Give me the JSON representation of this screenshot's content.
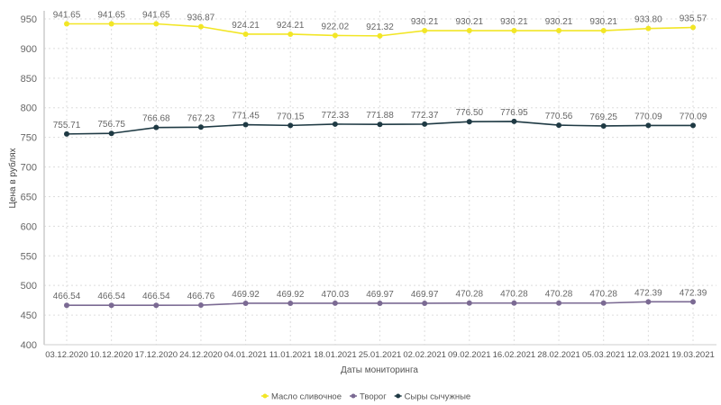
{
  "chart_data": {
    "type": "line",
    "title": "",
    "xlabel": "Даты мониторинга",
    "ylabel": "Цена в рублях",
    "ylim": [
      400,
      950
    ],
    "yticks": [
      400,
      450,
      500,
      550,
      600,
      650,
      700,
      750,
      800,
      850,
      900,
      950
    ],
    "grid": true,
    "legend_position": "bottom-center",
    "categories": [
      "03.12.2020",
      "10.12.2020",
      "17.12.2020",
      "24.12.2020",
      "04.01.2021",
      "11.01.2021",
      "18.01.2021",
      "25.01.2021",
      "02.02.2021",
      "09.02.2021",
      "16.02.2021",
      "28.02.2021",
      "05.03.2021",
      "12.03.2021",
      "19.03.2021"
    ],
    "series": [
      {
        "name": "Масло сливочное",
        "color": "#f2e626",
        "values": [
          941.65,
          941.65,
          941.65,
          936.87,
          924.21,
          924.21,
          922.02,
          921.32,
          930.21,
          930.21,
          930.21,
          930.21,
          930.21,
          933.8,
          935.57
        ]
      },
      {
        "name": "Творог",
        "color": "#7b6a93",
        "values": [
          466.54,
          466.54,
          466.54,
          466.76,
          469.92,
          469.92,
          470.03,
          469.97,
          469.97,
          470.28,
          470.28,
          470.28,
          470.28,
          472.39,
          472.39
        ]
      },
      {
        "name": "Сыры сычужные",
        "color": "#1f3a44",
        "values": [
          755.71,
          756.75,
          766.68,
          767.23,
          771.45,
          770.15,
          772.33,
          771.88,
          772.37,
          776.5,
          776.95,
          770.56,
          769.25,
          770.09,
          770.09
        ]
      }
    ]
  }
}
